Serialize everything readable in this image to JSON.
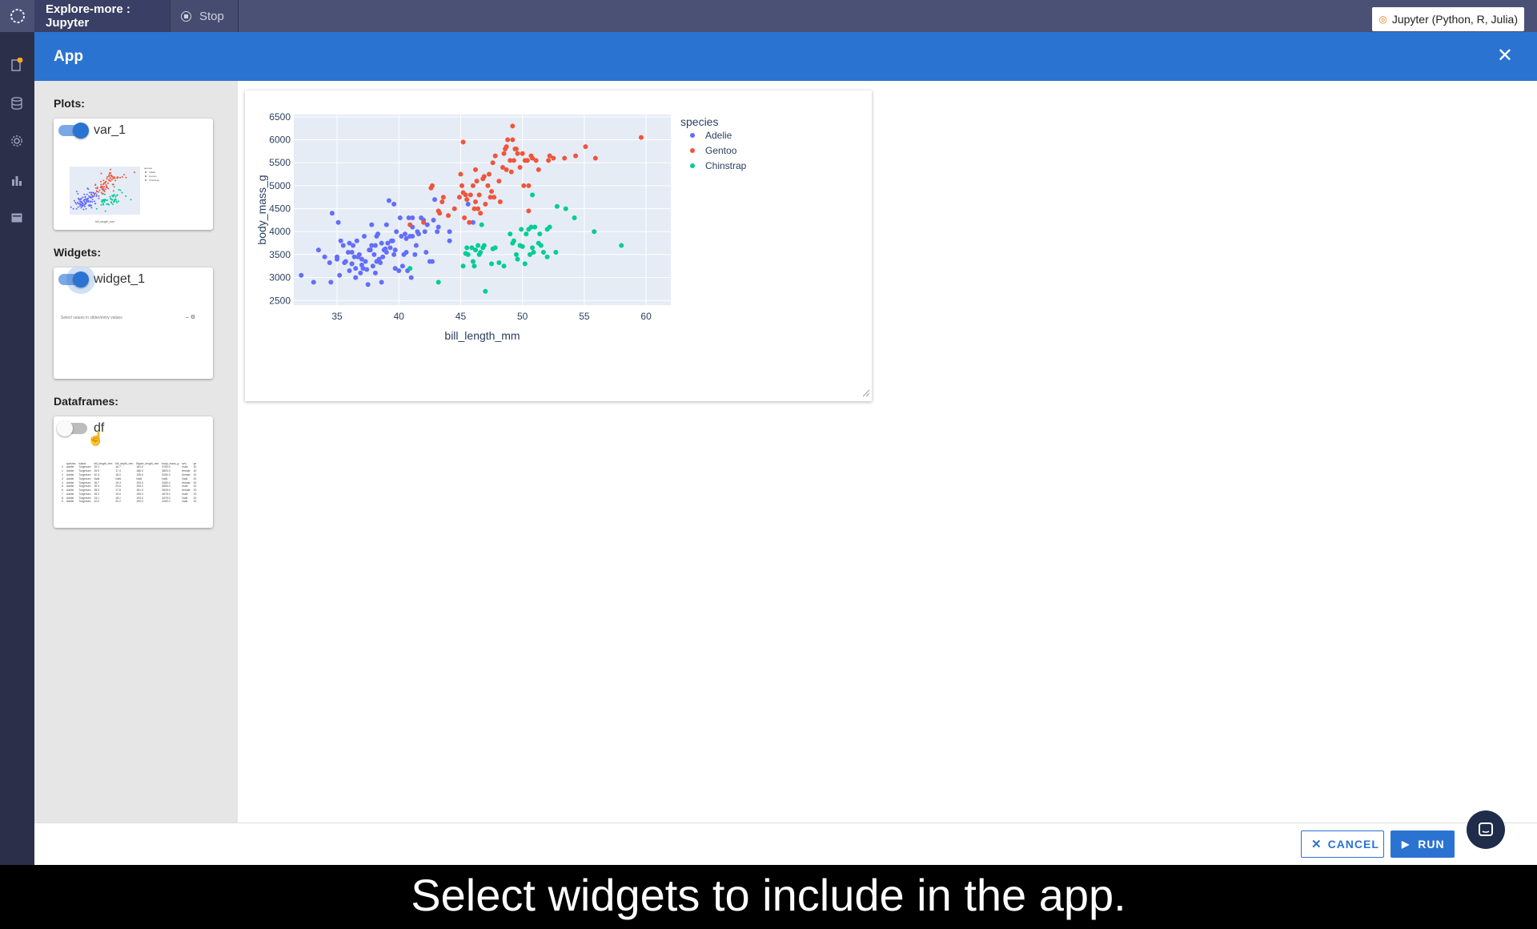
{
  "topbar": {
    "tab_title": "Explore-more : Jupyter",
    "stop_label": "Stop",
    "kernel_label": "Jupyter (Python, R, Julia)"
  },
  "modal": {
    "title": "App",
    "close_icon": "close-icon"
  },
  "left_panel": {
    "plots_label": "Plots:",
    "plot_item": {
      "name": "var_1",
      "enabled": true
    },
    "widgets_label": "Widgets:",
    "widget_item": {
      "name": "widget_1",
      "enabled": true,
      "preview_text": "Select values in slider/entry values"
    },
    "dataframes_label": "Dataframes:",
    "dataframe_item": {
      "name": "df",
      "enabled": false,
      "preview_columns": [
        "",
        "species",
        "island",
        "bill_length_mm",
        "bill_depth_mm",
        "flipper_length_mm",
        "body_mass_g",
        "sex",
        "ye"
      ],
      "preview_rows": [
        [
          "0",
          "Adelie",
          "Torgersen",
          "39.1",
          "18.7",
          "181.0",
          "3750.0",
          "male",
          "20"
        ],
        [
          "1",
          "Adelie",
          "Torgersen",
          "39.5",
          "17.4",
          "186.0",
          "3800.0",
          "female",
          "20"
        ],
        [
          "2",
          "Adelie",
          "Torgersen",
          "40.3",
          "18.0",
          "195.0",
          "3250.0",
          "female",
          "20"
        ],
        [
          "3",
          "Adelie",
          "Torgersen",
          "NaN",
          "NaN",
          "NaN",
          "NaN",
          "NaN",
          "20"
        ],
        [
          "4",
          "Adelie",
          "Torgersen",
          "36.7",
          "19.3",
          "193.0",
          "3450.0",
          "female",
          "20"
        ],
        [
          "5",
          "Adelie",
          "Torgersen",
          "39.3",
          "20.6",
          "190.0",
          "3650.0",
          "male",
          "20"
        ],
        [
          "6",
          "Adelie",
          "Torgersen",
          "38.9",
          "17.8",
          "181.0",
          "3625.0",
          "female",
          "20"
        ],
        [
          "7",
          "Adelie",
          "Torgersen",
          "39.2",
          "19.6",
          "195.0",
          "4675.0",
          "male",
          "20"
        ],
        [
          "8",
          "Adelie",
          "Torgersen",
          "34.1",
          "18.1",
          "193.0",
          "3475.0",
          "NaN",
          "20"
        ],
        [
          "9",
          "Adelie",
          "Torgersen",
          "42.0",
          "20.2",
          "190.0",
          "4250.0",
          "NaN",
          "20"
        ]
      ]
    }
  },
  "footer": {
    "cancel_label": "CANCEL",
    "run_label": "RUN"
  },
  "caption": "Select widgets to include in the app.",
  "colors": {
    "accent": "#2b73d1",
    "adelie": "#636efa",
    "gentoo": "#ef553b",
    "chinstrap": "#00cc96",
    "plot_bg": "#e5ecf6"
  },
  "chart_data": {
    "type": "scatter",
    "xlabel": "bill_length_mm",
    "ylabel": "body_mass_g",
    "xlim": [
      31.5,
      62
    ],
    "ylim": [
      2400,
      6550
    ],
    "xticks": [
      35,
      40,
      45,
      50,
      55,
      60
    ],
    "yticks": [
      2500,
      3000,
      3500,
      4000,
      4500,
      5000,
      5500,
      6000,
      6500
    ],
    "legend_title": "species",
    "legend_position": "right",
    "series": [
      {
        "name": "Adelie",
        "color": "#636efa",
        "points": [
          [
            32.1,
            3050
          ],
          [
            33.1,
            2900
          ],
          [
            33.5,
            3600
          ],
          [
            34,
            3450
          ],
          [
            34.4,
            3325
          ],
          [
            34.5,
            2900
          ],
          [
            34.6,
            4400
          ],
          [
            35,
            3450
          ],
          [
            35.1,
            4200
          ],
          [
            35.2,
            3050
          ],
          [
            35.3,
            3800
          ],
          [
            35.5,
            3700
          ],
          [
            35.6,
            3325
          ],
          [
            35.7,
            3350
          ],
          [
            35.9,
            3550
          ],
          [
            36,
            3150
          ],
          [
            36.2,
            3300
          ],
          [
            36.2,
            3550
          ],
          [
            36.3,
            3700
          ],
          [
            36.4,
            3450
          ],
          [
            36.5,
            3000
          ],
          [
            36.6,
            3800
          ],
          [
            36.7,
            3450
          ],
          [
            36.8,
            3500
          ],
          [
            36.9,
            3100
          ],
          [
            37,
            3275
          ],
          [
            37.2,
            3900
          ],
          [
            37.3,
            3350
          ],
          [
            37.4,
            3175
          ],
          [
            37.5,
            2850
          ],
          [
            37.6,
            3600
          ],
          [
            37.7,
            3600
          ],
          [
            37.8,
            3700
          ],
          [
            37.8,
            4150
          ],
          [
            37.9,
            3250
          ],
          [
            38.1,
            3100
          ],
          [
            38.1,
            3700
          ],
          [
            38.2,
            3900
          ],
          [
            38.3,
            3950
          ],
          [
            38.5,
            3325
          ],
          [
            38.6,
            3750
          ],
          [
            38.6,
            2900
          ],
          [
            38.7,
            3450
          ],
          [
            38.8,
            3600
          ],
          [
            38.9,
            3625
          ],
          [
            39,
            3550
          ],
          [
            39.1,
            3750
          ],
          [
            39.2,
            4675
          ],
          [
            39.3,
            3650
          ],
          [
            39.5,
            3800
          ],
          [
            39.6,
            3500
          ],
          [
            39.6,
            4600
          ],
          [
            39.7,
            3200
          ],
          [
            39.8,
            4000
          ],
          [
            40,
            3150
          ],
          [
            40.1,
            4300
          ],
          [
            40.2,
            3900
          ],
          [
            40.3,
            3250
          ],
          [
            40.5,
            3950
          ],
          [
            40.6,
            3550
          ],
          [
            40.7,
            3150
          ],
          [
            40.8,
            4300
          ],
          [
            40.9,
            3900
          ],
          [
            41,
            3000
          ],
          [
            41.1,
            3900
          ],
          [
            41.1,
            4100
          ],
          [
            41.3,
            3500
          ],
          [
            41.4,
            3700
          ],
          [
            41.5,
            4000
          ],
          [
            41.6,
            3950
          ],
          [
            41.8,
            4300
          ],
          [
            42,
            4250
          ],
          [
            42.1,
            4000
          ],
          [
            42.2,
            3550
          ],
          [
            42.3,
            4150
          ],
          [
            42.5,
            3350
          ],
          [
            42.7,
            3350
          ],
          [
            42.8,
            4250
          ],
          [
            42.9,
            4700
          ],
          [
            43.1,
            4000
          ],
          [
            43.2,
            4100
          ],
          [
            44.1,
            4000
          ],
          [
            44.1,
            3800
          ],
          [
            45.6,
            4600
          ],
          [
            46,
            4200
          ],
          [
            38,
            3500
          ],
          [
            36.5,
            3200
          ],
          [
            37,
            3400
          ],
          [
            38.4,
            3400
          ],
          [
            39.4,
            3800
          ],
          [
            40.4,
            3500
          ],
          [
            36.2,
            3300
          ],
          [
            35,
            3400
          ],
          [
            37.1,
            3200
          ],
          [
            39.7,
            3600
          ],
          [
            40.6,
            3850
          ],
          [
            38.2,
            3350
          ],
          [
            41.1,
            4300
          ],
          [
            39,
            4150
          ],
          [
            36,
            3750
          ]
        ]
      },
      {
        "name": "Gentoo",
        "color": "#ef553b",
        "points": [
          [
            40.9,
            4150
          ],
          [
            42,
            4200
          ],
          [
            42.6,
            4950
          ],
          [
            42.7,
            5000
          ],
          [
            43.2,
            4450
          ],
          [
            43.3,
            4400
          ],
          [
            43.5,
            4650
          ],
          [
            43.6,
            4750
          ],
          [
            44,
            4350
          ],
          [
            44.5,
            4500
          ],
          [
            44.9,
            4750
          ],
          [
            45,
            5250
          ],
          [
            45.1,
            5000
          ],
          [
            45.2,
            4850
          ],
          [
            45.2,
            5950
          ],
          [
            45.3,
            4300
          ],
          [
            45.4,
            4800
          ],
          [
            45.5,
            4700
          ],
          [
            45.7,
            4200
          ],
          [
            45.8,
            4800
          ],
          [
            46,
            5000
          ],
          [
            46.1,
            4500
          ],
          [
            46.2,
            4650
          ],
          [
            46.3,
            5100
          ],
          [
            46.4,
            4500
          ],
          [
            46.5,
            4800
          ],
          [
            46.6,
            4400
          ],
          [
            46.8,
            5150
          ],
          [
            46.9,
            5200
          ],
          [
            47,
            4600
          ],
          [
            47.2,
            5000
          ],
          [
            47.3,
            5250
          ],
          [
            47.4,
            4750
          ],
          [
            47.5,
            4875
          ],
          [
            47.6,
            5500
          ],
          [
            47.7,
            4750
          ],
          [
            47.8,
            5650
          ],
          [
            48.1,
            5100
          ],
          [
            48.2,
            4650
          ],
          [
            48.4,
            5400
          ],
          [
            48.5,
            5700
          ],
          [
            48.6,
            5800
          ],
          [
            48.7,
            5350
          ],
          [
            48.8,
            6000
          ],
          [
            49,
            5550
          ],
          [
            49.1,
            5300
          ],
          [
            49.2,
            6300
          ],
          [
            49.3,
            5550
          ],
          [
            49.4,
            5800
          ],
          [
            49.5,
            5800
          ],
          [
            49.6,
            5700
          ],
          [
            49.8,
            5400
          ],
          [
            50,
            5700
          ],
          [
            50.1,
            5000
          ],
          [
            50.2,
            5550
          ],
          [
            50.4,
            5550
          ],
          [
            50.5,
            5000
          ],
          [
            50.7,
            5650
          ],
          [
            50.8,
            5600
          ],
          [
            51.1,
            5550
          ],
          [
            51.3,
            5350
          ],
          [
            52.1,
            5550
          ],
          [
            52.2,
            5650
          ],
          [
            52.5,
            5600
          ],
          [
            53.4,
            5600
          ],
          [
            54.3,
            5650
          ],
          [
            55.1,
            5850
          ],
          [
            55.9,
            5600
          ],
          [
            59.6,
            6050
          ],
          [
            49.2,
            6000
          ],
          [
            48.7,
            5850
          ],
          [
            50.5,
            4450
          ],
          [
            46.2,
            5350
          ]
        ]
      },
      {
        "name": "Chinstrap",
        "color": "#00cc96",
        "points": [
          [
            40.9,
            3200
          ],
          [
            43.2,
            2900
          ],
          [
            45.2,
            3250
          ],
          [
            45.4,
            3525
          ],
          [
            45.6,
            3500
          ],
          [
            45.9,
            3650
          ],
          [
            46,
            3350
          ],
          [
            46.1,
            3250
          ],
          [
            46.2,
            3600
          ],
          [
            46.4,
            3700
          ],
          [
            46.5,
            3500
          ],
          [
            46.6,
            3550
          ],
          [
            46.8,
            3650
          ],
          [
            46.9,
            3700
          ],
          [
            47,
            2700
          ],
          [
            47.5,
            3300
          ],
          [
            47.6,
            3625
          ],
          [
            47.8,
            3650
          ],
          [
            48.1,
            3325
          ],
          [
            48.5,
            3250
          ],
          [
            49,
            3950
          ],
          [
            49.2,
            3750
          ],
          [
            49.3,
            3800
          ],
          [
            49.5,
            3500
          ],
          [
            49.6,
            3400
          ],
          [
            49.8,
            3700
          ],
          [
            49.9,
            4050
          ],
          [
            50,
            3675
          ],
          [
            50.2,
            3300
          ],
          [
            50.3,
            3950
          ],
          [
            50.5,
            4050
          ],
          [
            50.6,
            3500
          ],
          [
            50.7,
            4100
          ],
          [
            50.8,
            3650
          ],
          [
            50.9,
            3550
          ],
          [
            51,
            4100
          ],
          [
            51.3,
            3750
          ],
          [
            51.4,
            3950
          ],
          [
            51.5,
            3700
          ],
          [
            51.7,
            3550
          ],
          [
            52,
            4050
          ],
          [
            52.2,
            4100
          ],
          [
            52.7,
            3550
          ],
          [
            52.8,
            4550
          ],
          [
            53.5,
            4500
          ],
          [
            54.2,
            4300
          ],
          [
            55.8,
            4000
          ],
          [
            58,
            3700
          ],
          [
            45.5,
            3650
          ],
          [
            46.7,
            4150
          ],
          [
            52,
            3450
          ],
          [
            50.8,
            4800
          ]
        ]
      }
    ]
  }
}
